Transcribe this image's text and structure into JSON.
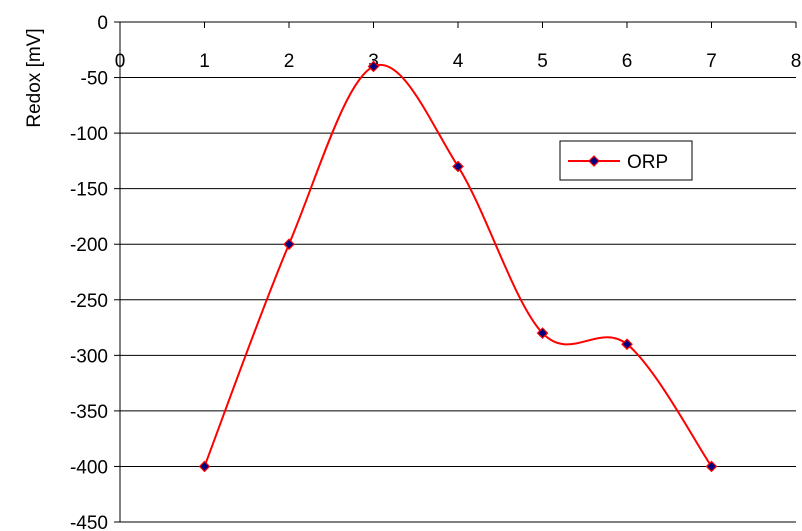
{
  "chart_data": {
    "type": "line",
    "title": "",
    "xlabel": "",
    "ylabel": "Redox [mV]",
    "xlim": [
      0,
      8
    ],
    "ylim": [
      -450,
      0
    ],
    "x_ticks": [
      0,
      1,
      2,
      3,
      4,
      5,
      6,
      7,
      8
    ],
    "y_ticks": [
      0,
      -50,
      -100,
      -150,
      -200,
      -250,
      -300,
      -350,
      -400,
      -450
    ],
    "grid": "horizontal",
    "legend_position": "right",
    "smooth": true,
    "series": [
      {
        "name": "ORP",
        "color": "#ff0000",
        "marker": "diamond",
        "marker_color": "#000080",
        "x": [
          1,
          2,
          3,
          4,
          5,
          6,
          7
        ],
        "values": [
          -400,
          -200,
          -40,
          -130,
          -280,
          -290,
          -400
        ]
      }
    ]
  }
}
